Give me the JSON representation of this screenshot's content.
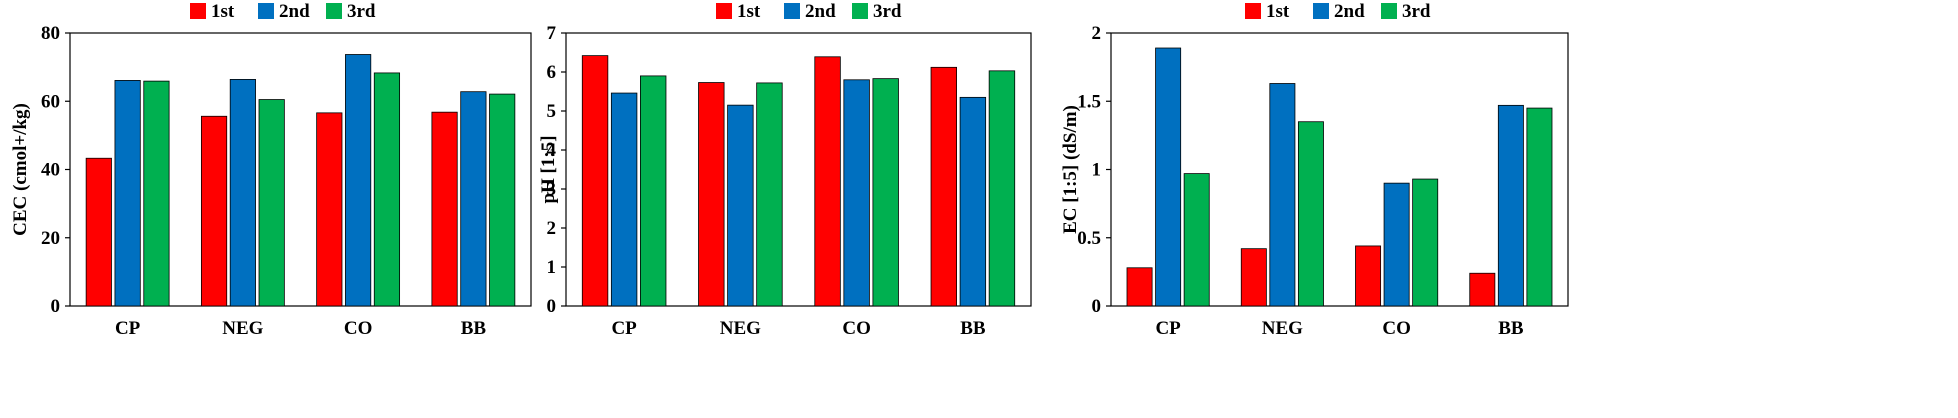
{
  "chart_data": [
    {
      "type": "bar",
      "categories": [
        "CP",
        "NEG",
        "CO",
        "BB"
      ],
      "series": [
        {
          "name": "1st",
          "values": [
            43.3,
            55.6,
            56.6,
            56.8
          ]
        },
        {
          "name": "2nd",
          "values": [
            66.1,
            66.4,
            73.7,
            62.8
          ]
        },
        {
          "name": "3rd",
          "values": [
            65.9,
            60.5,
            68.3,
            62.1
          ]
        }
      ],
      "ylabel": "CEC (cmol+/kg)",
      "ylim": [
        0,
        80
      ],
      "yticks": [
        "0",
        "20",
        "40",
        "60",
        "80"
      ],
      "legend": "top-center",
      "grid": false
    },
    {
      "type": "bar",
      "categories": [
        "CP",
        "NEG",
        "CO",
        "BB"
      ],
      "series": [
        {
          "name": "1st",
          "values": [
            6.42,
            5.73,
            6.39,
            6.12
          ]
        },
        {
          "name": "2nd",
          "values": [
            5.46,
            5.15,
            5.8,
            5.35
          ]
        },
        {
          "name": "3rd",
          "values": [
            5.9,
            5.72,
            5.83,
            6.03
          ]
        }
      ],
      "ylabel": "pH [1:5]",
      "ylim": [
        0,
        7
      ],
      "yticks": [
        "0",
        "1",
        "2",
        "3",
        "4",
        "5",
        "6",
        "7"
      ],
      "legend": "top-center",
      "grid": false
    },
    {
      "type": "bar",
      "categories": [
        "CP",
        "NEG",
        "CO",
        "BB"
      ],
      "series": [
        {
          "name": "1st",
          "values": [
            0.28,
            0.42,
            0.44,
            0.24
          ]
        },
        {
          "name": "2nd",
          "values": [
            1.89,
            1.63,
            0.9,
            1.47
          ]
        },
        {
          "name": "3rd",
          "values": [
            0.97,
            1.35,
            0.93,
            1.45
          ]
        }
      ],
      "ylabel": "EC [1:5] (dS/m)",
      "ylim": [
        0,
        2
      ],
      "yticks": [
        "0",
        "0.5",
        "1",
        "1.5",
        "2"
      ],
      "legend": "top-center",
      "grid": false
    }
  ],
  "colors": {
    "1st": "#ff0000",
    "2nd": "#0070c0",
    "3rd": "#00b050"
  }
}
